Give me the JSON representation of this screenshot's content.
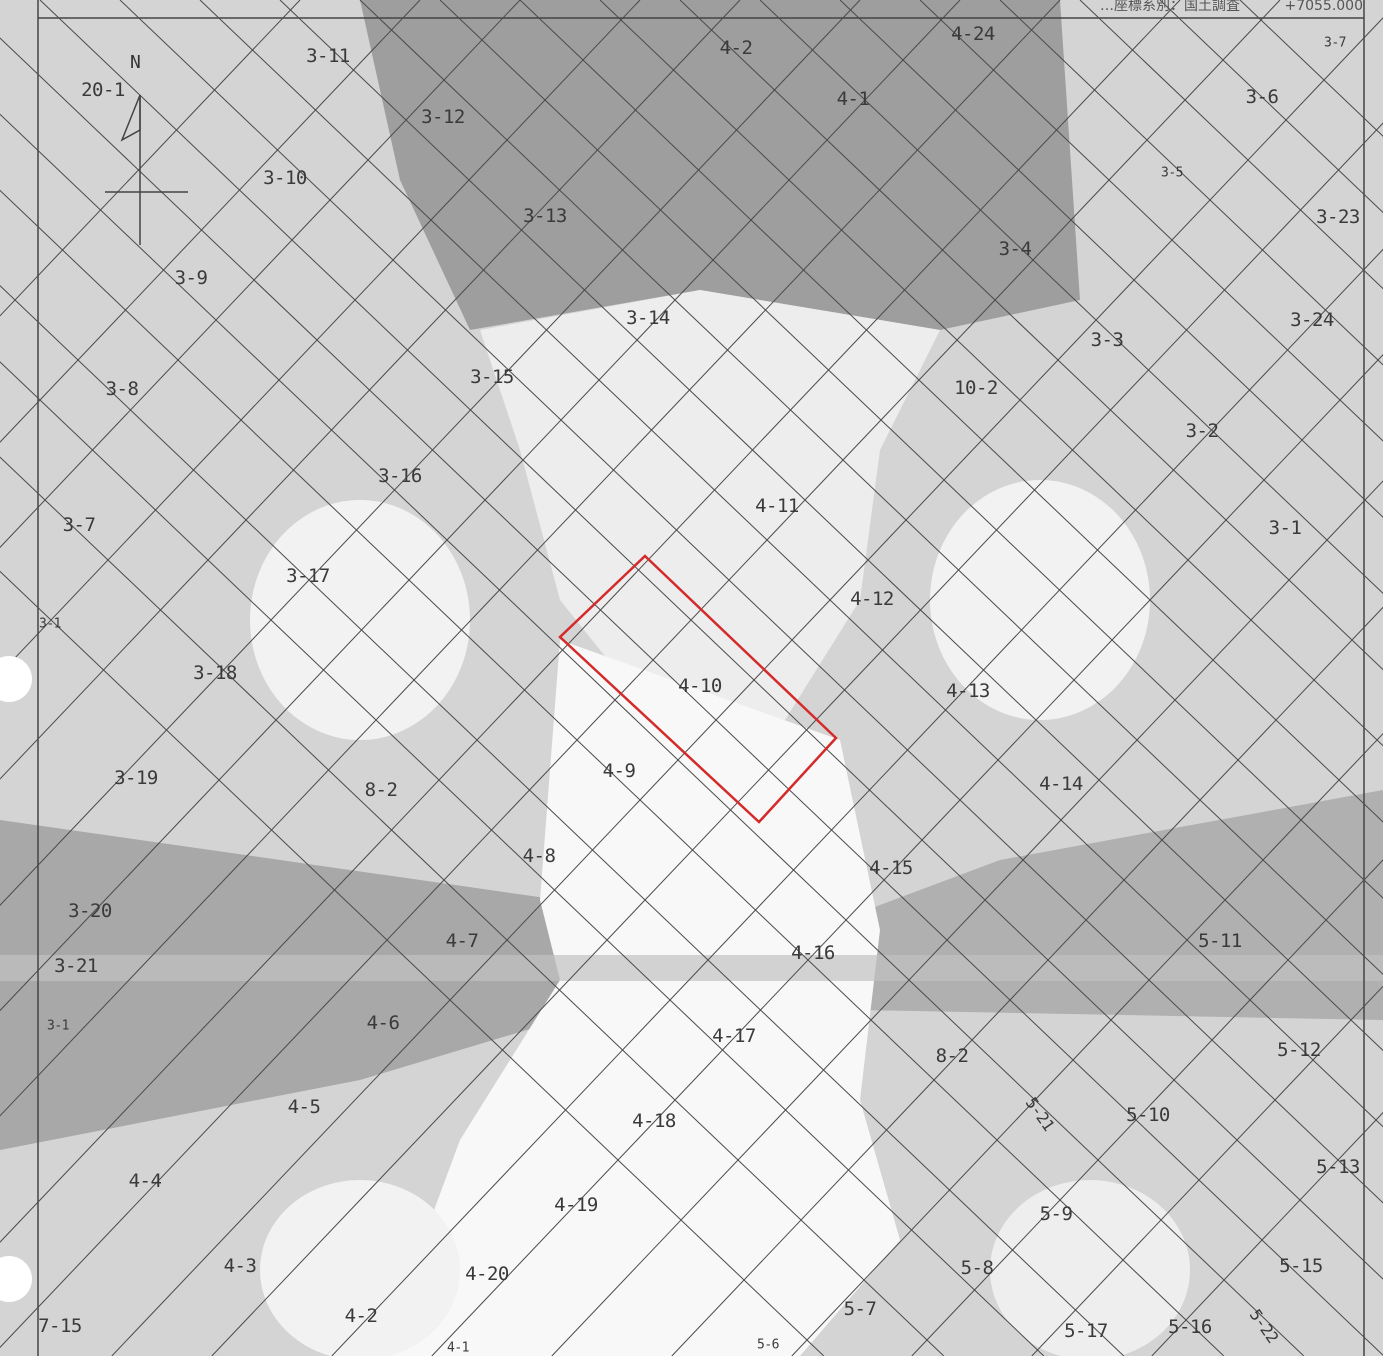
{
  "map": {
    "header_label": "…座標系別：国土調査",
    "header_value": "+7055.000",
    "north_label": "N",
    "highlight_color": "#d42a2a",
    "highlighted_parcel": "4-10",
    "parcels": [
      {
        "id": "3-11"
      },
      {
        "id": "3-12"
      },
      {
        "id": "4-2"
      },
      {
        "id": "4-24"
      },
      {
        "id": "4-1"
      },
      {
        "id": "3-7"
      },
      {
        "id": "3-6"
      },
      {
        "id": "20-1"
      },
      {
        "id": "3-10"
      },
      {
        "id": "3-13"
      },
      {
        "id": "3-5"
      },
      {
        "id": "3-23"
      },
      {
        "id": "3-4"
      },
      {
        "id": "3-9"
      },
      {
        "id": "3-14"
      },
      {
        "id": "3-24"
      },
      {
        "id": "3-3"
      },
      {
        "id": "3-8"
      },
      {
        "id": "3-15"
      },
      {
        "id": "10-2"
      },
      {
        "id": "3-2"
      },
      {
        "id": "3-16"
      },
      {
        "id": "4-11"
      },
      {
        "id": "3-1"
      },
      {
        "id": "3-7"
      },
      {
        "id": "3-17"
      },
      {
        "id": "4-12"
      },
      {
        "id": "3-18"
      },
      {
        "id": "4-10"
      },
      {
        "id": "4-13"
      },
      {
        "id": "4-9"
      },
      {
        "id": "3-19"
      },
      {
        "id": "8-2"
      },
      {
        "id": "4-14"
      },
      {
        "id": "4-8"
      },
      {
        "id": "4-15"
      },
      {
        "id": "3-20"
      },
      {
        "id": "4-7"
      },
      {
        "id": "5-11"
      },
      {
        "id": "4-16"
      },
      {
        "id": "3-21"
      },
      {
        "id": "3-1"
      },
      {
        "id": "4-6"
      },
      {
        "id": "4-17"
      },
      {
        "id": "8-2"
      },
      {
        "id": "5-12"
      },
      {
        "id": "4-5"
      },
      {
        "id": "4-18"
      },
      {
        "id": "5-21"
      },
      {
        "id": "5-10"
      },
      {
        "id": "4-4"
      },
      {
        "id": "5-13"
      },
      {
        "id": "4-19"
      },
      {
        "id": "5-9"
      },
      {
        "id": "4-3"
      },
      {
        "id": "4-20"
      },
      {
        "id": "5-8"
      },
      {
        "id": "5-15"
      },
      {
        "id": "4-2"
      },
      {
        "id": "5-7"
      },
      {
        "id": "7-15"
      },
      {
        "id": "5-17"
      },
      {
        "id": "5-16"
      },
      {
        "id": "5-22"
      },
      {
        "id": "5-6"
      },
      {
        "id": "4-1"
      },
      {
        "id": "3-1"
      }
    ]
  }
}
